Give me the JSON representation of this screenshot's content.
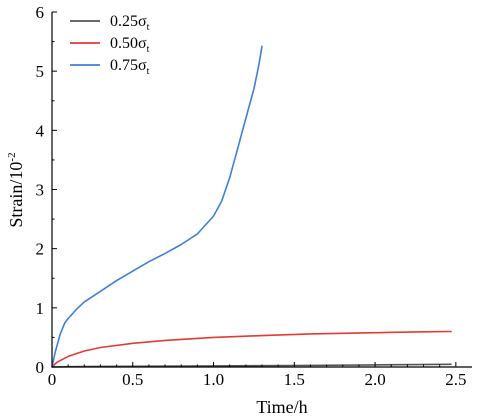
{
  "chart_data": {
    "type": "line",
    "title": "",
    "xlabel": "Time/h",
    "ylabel_main": "Strain/10",
    "ylabel_sup": "-2",
    "xlim": [
      0,
      2.6
    ],
    "ylim": [
      0,
      6
    ],
    "xticks": [
      0,
      0.5,
      1.0,
      1.5,
      2.0,
      2.5
    ],
    "xtick_labels": [
      "0",
      "0.5",
      "1.0",
      "1.5",
      "2.0",
      "2.5"
    ],
    "yticks": [
      0,
      1,
      2,
      3,
      4,
      5,
      6
    ],
    "ytick_labels": [
      "0",
      "1",
      "2",
      "3",
      "4",
      "5",
      "6"
    ],
    "grid": false,
    "legend_position": "top-left",
    "series": [
      {
        "name": "0.25σ",
        "name_main": "0.25σ",
        "name_sub": "t",
        "color": "#555555",
        "x": [
          0,
          0.1,
          0.3,
          0.5,
          1.0,
          1.5,
          2.0,
          2.47
        ],
        "y": [
          0,
          0.005,
          0.01,
          0.012,
          0.018,
          0.025,
          0.035,
          0.045
        ]
      },
      {
        "name": "0.50σ",
        "name_main": "0.50σ",
        "name_sub": "t",
        "color": "#e53935",
        "x": [
          0,
          0.03,
          0.1,
          0.2,
          0.3,
          0.5,
          0.7,
          1.0,
          1.3,
          1.6,
          2.0,
          2.3,
          2.47
        ],
        "y": [
          0,
          0.08,
          0.18,
          0.27,
          0.33,
          0.4,
          0.45,
          0.5,
          0.53,
          0.56,
          0.58,
          0.595,
          0.6
        ]
      },
      {
        "name": "0.75σ",
        "name_main": "0.75σ",
        "name_sub": "t",
        "color": "#3f7fd6",
        "x": [
          0,
          0.02,
          0.05,
          0.08,
          0.1,
          0.15,
          0.2,
          0.3,
          0.4,
          0.5,
          0.6,
          0.7,
          0.8,
          0.9,
          1.0,
          1.05,
          1.1,
          1.15,
          1.2,
          1.25,
          1.28,
          1.3
        ],
        "y": [
          0,
          0.25,
          0.55,
          0.75,
          0.82,
          0.97,
          1.1,
          1.28,
          1.46,
          1.62,
          1.78,
          1.92,
          2.07,
          2.25,
          2.55,
          2.8,
          3.2,
          3.7,
          4.2,
          4.7,
          5.1,
          5.42
        ]
      }
    ]
  }
}
